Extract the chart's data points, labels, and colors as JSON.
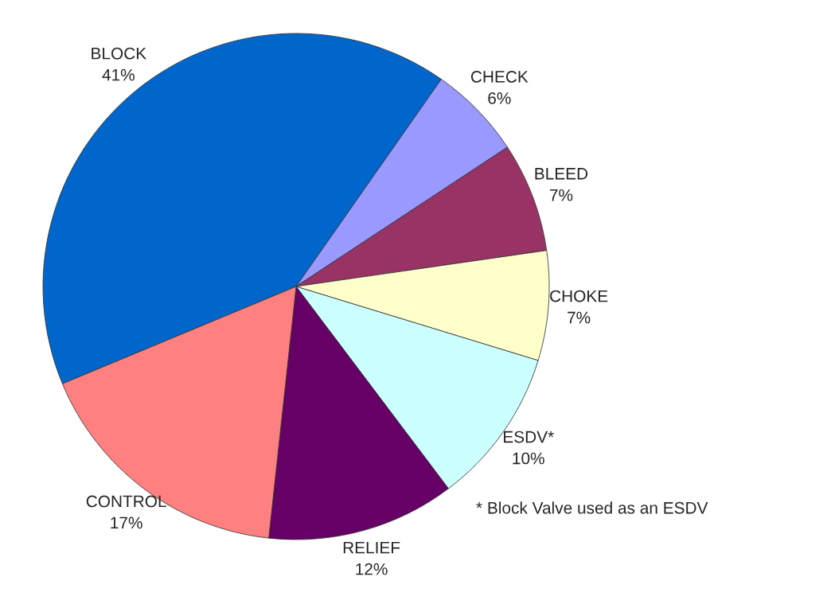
{
  "chart_data": {
    "type": "pie",
    "categories": [
      "BLOCK",
      "CHECK",
      "BLEED",
      "CHOKE",
      "ESDV*",
      "RELIEF",
      "CONTROL"
    ],
    "values": [
      41,
      6,
      7,
      7,
      10,
      12,
      17
    ],
    "value_labels": [
      "41%",
      "6%",
      "7%",
      "7%",
      "10%",
      "12%",
      "17%"
    ],
    "colors": [
      "#0066cc",
      "#9999ff",
      "#993366",
      "#ffffcc",
      "#ccffff",
      "#660066",
      "#ff8080"
    ],
    "annotations": [
      "* Block Valve used as an ESDV"
    ],
    "legend": false
  }
}
